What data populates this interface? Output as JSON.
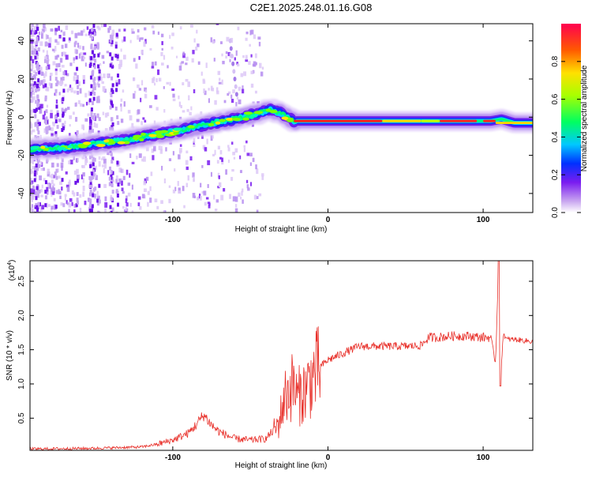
{
  "title": "C2E1.2025.248.01.16.G08",
  "chart_data": [
    {
      "type": "heatmap",
      "xlabel": "Height of straight line (km)",
      "ylabel": "Frequency (Hz)",
      "xlim": [
        -192,
        132
      ],
      "ylim": [
        -50,
        49
      ],
      "xticks": [
        -100,
        0,
        100
      ],
      "xtick_labels": [
        "-100",
        "0",
        "100"
      ],
      "yticks": [
        -40,
        -20,
        0,
        20,
        40
      ],
      "ytick_labels": [
        "-40",
        "-20",
        "0",
        "20",
        "40"
      ],
      "ridge": {
        "x": [
          -192,
          -170,
          -150,
          -130,
          -110,
          -95,
          -80,
          -60,
          -45,
          -38,
          -30,
          -22,
          -10,
          0,
          20,
          50,
          80,
          95,
          105,
          112,
          120,
          132
        ],
        "y": [
          -17,
          -16,
          -14,
          -12,
          -9,
          -7,
          -4,
          -1,
          2,
          4,
          2,
          -2,
          -2,
          -2,
          -2,
          -2,
          -2,
          -2,
          -2,
          -1,
          -3,
          -3
        ]
      },
      "colorbar": {
        "label": "Normalized spectral amplitude",
        "range": [
          0.0,
          1.0
        ],
        "ticks": [
          0.0,
          0.2,
          0.4,
          0.6,
          0.8
        ],
        "tick_labels": [
          "0.0",
          "0.2",
          "0.4",
          "0.6",
          "0.8"
        ]
      }
    },
    {
      "type": "line",
      "xlabel": "Height of straight line (km)",
      "ylabel": "SNR (10 * v/v)",
      "scale_label_base": "(x10",
      "scale_label_exp": "4",
      "scale_label_close": ")",
      "xlim": [
        -192,
        132
      ],
      "ylim": [
        0.03,
        2.8
      ],
      "xticks": [
        -100,
        0,
        100
      ],
      "xtick_labels": [
        "-100",
        "0",
        "100"
      ],
      "yticks": [
        0.5,
        1.0,
        1.5,
        2.0,
        2.5
      ],
      "ytick_labels": [
        "0.5",
        "1.0",
        "1.5",
        "2.0",
        "2.5"
      ],
      "series": [
        {
          "name": "SNR",
          "color": "#e8302a",
          "x": [
            -192,
            -150,
            -120,
            -110,
            -100,
            -90,
            -85,
            -80,
            -75,
            -70,
            -60,
            -50,
            -40,
            -32,
            -28,
            -25,
            -22,
            -20,
            -15,
            -10,
            -5,
            0,
            10,
            20,
            30,
            40,
            50,
            60,
            65,
            70,
            80,
            90,
            100,
            105,
            108,
            110,
            111,
            113,
            115,
            120,
            132
          ],
          "y": [
            0.05,
            0.06,
            0.08,
            0.12,
            0.18,
            0.28,
            0.4,
            0.55,
            0.4,
            0.3,
            0.2,
            0.18,
            0.2,
            0.4,
            0.8,
            0.9,
            1.0,
            0.8,
            0.9,
            1.1,
            1.25,
            1.35,
            1.45,
            1.55,
            1.55,
            1.55,
            1.55,
            1.56,
            1.68,
            1.68,
            1.7,
            1.7,
            1.68,
            1.68,
            1.3,
            2.8,
            1.0,
            1.75,
            1.65,
            1.65,
            1.62
          ]
        }
      ]
    }
  ]
}
